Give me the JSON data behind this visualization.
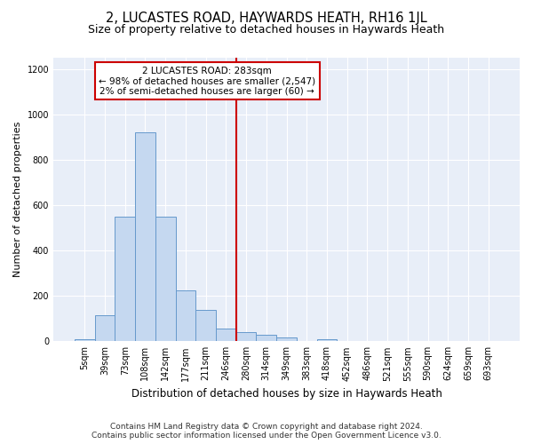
{
  "title": "2, LUCASTES ROAD, HAYWARDS HEATH, RH16 1JL",
  "subtitle": "Size of property relative to detached houses in Haywards Heath",
  "xlabel": "Distribution of detached houses by size in Haywards Heath",
  "ylabel": "Number of detached properties",
  "bar_categories": [
    "5sqm",
    "39sqm",
    "73sqm",
    "108sqm",
    "142sqm",
    "177sqm",
    "211sqm",
    "246sqm",
    "280sqm",
    "314sqm",
    "349sqm",
    "383sqm",
    "418sqm",
    "452sqm",
    "486sqm",
    "521sqm",
    "555sqm",
    "590sqm",
    "624sqm",
    "659sqm",
    "693sqm"
  ],
  "bar_values": [
    8,
    115,
    550,
    920,
    550,
    225,
    140,
    55,
    40,
    30,
    18,
    0,
    8,
    0,
    0,
    0,
    0,
    0,
    0,
    0,
    0
  ],
  "bar_color": "#c5d8f0",
  "bar_edge_color": "#6699cc",
  "vline_color": "#cc0000",
  "ylim": [
    0,
    1250
  ],
  "yticks": [
    0,
    200,
    400,
    600,
    800,
    1000,
    1200
  ],
  "annotation_title": "2 LUCASTES ROAD: 283sqm",
  "annotation_line1": "← 98% of detached houses are smaller (2,547)",
  "annotation_line2": "2% of semi-detached houses are larger (60) →",
  "footer1": "Contains HM Land Registry data © Crown copyright and database right 2024.",
  "footer2": "Contains public sector information licensed under the Open Government Licence v3.0.",
  "bg_color": "#e8eef8",
  "title_fontsize": 10.5,
  "subtitle_fontsize": 9,
  "xlabel_fontsize": 8.5,
  "ylabel_fontsize": 8,
  "tick_fontsize": 7,
  "footer_fontsize": 6.5,
  "annot_fontsize": 7.5
}
